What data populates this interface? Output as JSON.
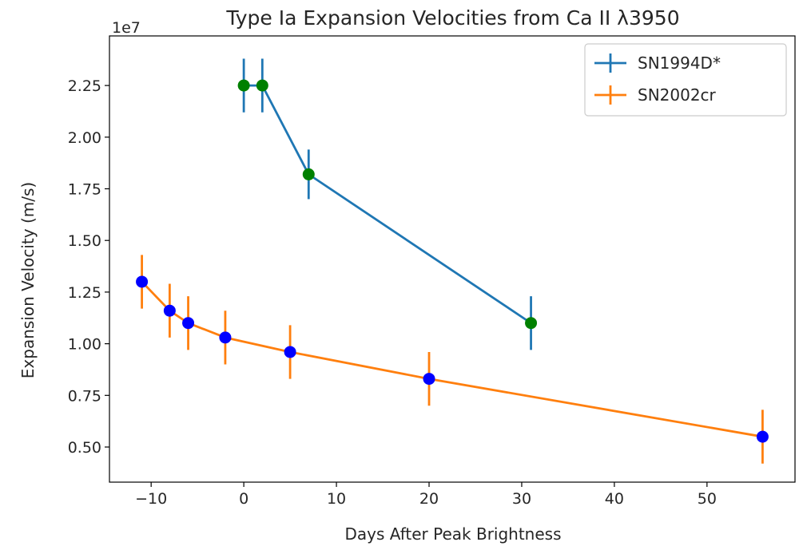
{
  "chart_data": {
    "type": "line",
    "title": "Type Ia Expansion Velocities from Ca II λ3950",
    "xlabel": "Days After Peak Brightness",
    "ylabel": "Expansion Velocity (m/s)",
    "y_scale_label": "1e7",
    "xlim": [
      -14.5,
      59.5
    ],
    "ylim": [
      3300000.0,
      24900000.0
    ],
    "xticks": [
      -10,
      0,
      10,
      20,
      30,
      40,
      50
    ],
    "xtick_labels": [
      "−10",
      "0",
      "10",
      "20",
      "30",
      "40",
      "50"
    ],
    "yticks": [
      5000000,
      7500000,
      10000000,
      12500000,
      15000000,
      17500000,
      20000000,
      22500000
    ],
    "ytick_labels": [
      "0.50",
      "0.75",
      "1.00",
      "1.25",
      "1.50",
      "1.75",
      "2.00",
      "2.25"
    ],
    "grid": false,
    "legend_position": "top-right",
    "series": [
      {
        "name": "SN1994D*",
        "color": "#1f77b4",
        "marker_color": "#008000",
        "x": [
          0,
          2,
          7,
          31
        ],
        "y": [
          22500000,
          22500000,
          18200000,
          11000000
        ],
        "yerr": [
          1300000,
          1300000,
          1200000,
          1300000
        ]
      },
      {
        "name": "SN2002cr",
        "color": "#ff7f0e",
        "marker_color": "#0000ff",
        "x": [
          -11,
          -8,
          -6,
          -2,
          5,
          20,
          56
        ],
        "y": [
          13000000,
          11600000,
          11000000,
          10300000,
          9600000,
          8300000,
          5500000
        ],
        "yerr": [
          1300000,
          1300000,
          1300000,
          1300000,
          1300000,
          1300000,
          1300000
        ]
      }
    ]
  }
}
